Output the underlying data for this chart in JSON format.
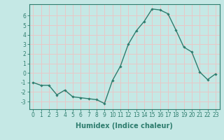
{
  "x": [
    0,
    1,
    2,
    3,
    4,
    5,
    6,
    7,
    8,
    9,
    10,
    11,
    12,
    13,
    14,
    15,
    16,
    17,
    18,
    19,
    20,
    21,
    22,
    23
  ],
  "y": [
    -1,
    -1.3,
    -1.3,
    -2.3,
    -1.8,
    -2.5,
    -2.6,
    -2.7,
    -2.8,
    -3.2,
    -0.8,
    0.7,
    3.0,
    4.4,
    5.4,
    6.7,
    6.6,
    6.2,
    4.5,
    2.7,
    2.2,
    0.1,
    -0.7,
    -0.1
  ],
  "line_color": "#2e7d6e",
  "marker": "D",
  "markersize": 1.8,
  "linewidth": 1.0,
  "xlabel": "Humidex (Indice chaleur)",
  "ylabel": "",
  "xlim": [
    -0.5,
    23.5
  ],
  "ylim": [
    -3.8,
    7.2
  ],
  "yticks": [
    -3,
    -2,
    -1,
    0,
    1,
    2,
    3,
    4,
    5,
    6
  ],
  "xticks": [
    0,
    1,
    2,
    3,
    4,
    5,
    6,
    7,
    8,
    9,
    10,
    11,
    12,
    13,
    14,
    15,
    16,
    17,
    18,
    19,
    20,
    21,
    22,
    23
  ],
  "xtick_labels": [
    "0",
    "1",
    "2",
    "3",
    "4",
    "5",
    "6",
    "7",
    "8",
    "9",
    "10",
    "11",
    "12",
    "13",
    "14",
    "15",
    "16",
    "17",
    "18",
    "19",
    "20",
    "21",
    "22",
    "23"
  ],
  "background_color": "#c5e8e5",
  "grid_color": "#e8c8c8",
  "tick_fontsize": 5.5,
  "xlabel_fontsize": 7.0,
  "title": ""
}
